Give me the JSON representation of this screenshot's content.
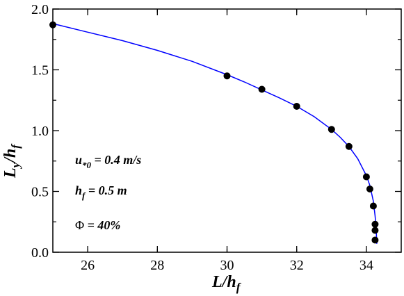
{
  "chart_data": {
    "type": "scatter",
    "x": [
      25.0,
      30.0,
      31.0,
      32.0,
      33.0,
      33.5,
      34.0,
      34.1,
      34.2,
      34.25,
      34.25,
      34.25
    ],
    "y": [
      1.87,
      1.45,
      1.34,
      1.2,
      1.01,
      0.87,
      0.62,
      0.52,
      0.38,
      0.23,
      0.18,
      0.1
    ],
    "curve": {
      "x": [
        25.0,
        26.0,
        27.0,
        28.0,
        29.0,
        30.0,
        30.5,
        31.0,
        31.5,
        32.0,
        32.5,
        33.0,
        33.25,
        33.5,
        33.75,
        34.0,
        34.1,
        34.2,
        34.25,
        34.28,
        34.3
      ],
      "y": [
        1.88,
        1.81,
        1.74,
        1.66,
        1.57,
        1.46,
        1.4,
        1.335,
        1.27,
        1.2,
        1.115,
        1.01,
        0.945,
        0.87,
        0.77,
        0.63,
        0.55,
        0.42,
        0.3,
        0.2,
        0.07
      ],
      "color": "#0000ff"
    },
    "marker_color": "#000000",
    "xlim": [
      25,
      35
    ],
    "ylim": [
      0.0,
      2.0
    ],
    "x_ticks": [
      26,
      28,
      30,
      32,
      34
    ],
    "x_tick_labels": [
      "26",
      "28",
      "30",
      "32",
      "34"
    ],
    "y_ticks": [
      0.0,
      0.5,
      1.0,
      1.5,
      2.0
    ],
    "y_tick_labels": [
      "0.0",
      "0.5",
      "1.0",
      "1.5",
      "2.0"
    ],
    "xlabel": {
      "main": "L/h",
      "sub": "f"
    },
    "ylabel": {
      "pre": "L",
      "pre_sub": "y",
      "mid": "/h",
      "post_sub": "f"
    },
    "annotations": [
      {
        "main": "u",
        "sub": "*0",
        "rest": " = 0.4 m/s"
      },
      {
        "main": "h",
        "sub": "f",
        "rest": " = 0.5 m"
      },
      {
        "symbol": "Φ",
        "rest": " = 40%"
      }
    ],
    "grid": false
  }
}
